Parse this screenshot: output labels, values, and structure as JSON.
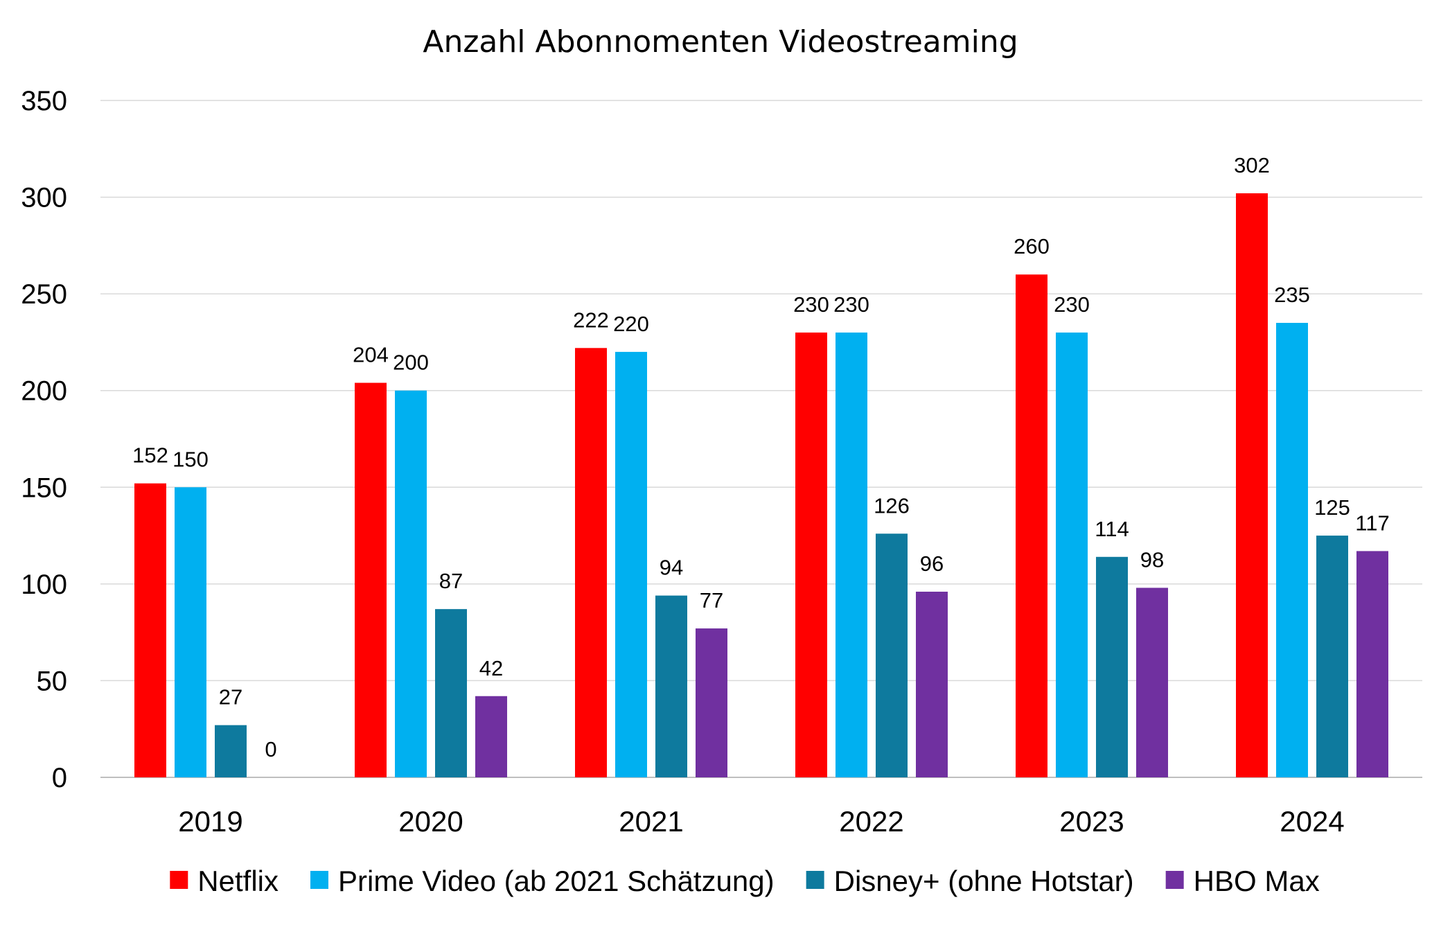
{
  "chart_data": {
    "type": "bar",
    "title": "Anzahl Abonnomenten Videostreaming",
    "xlabel": "",
    "ylabel": "",
    "ylim": [
      0,
      350
    ],
    "yticks": [
      0,
      50,
      100,
      150,
      200,
      250,
      300,
      350
    ],
    "grid": true,
    "legend_position": "bottom",
    "categories": [
      "2019",
      "2020",
      "2021",
      "2022",
      "2023",
      "2024"
    ],
    "series": [
      {
        "name": "Netflix",
        "color": "#ff0000",
        "values": [
          152,
          204,
          222,
          230,
          260,
          302
        ]
      },
      {
        "name": "Prime Video (ab 2021 Schätzung)",
        "color": "#00b0f0",
        "values": [
          150,
          200,
          220,
          230,
          230,
          235
        ]
      },
      {
        "name": "Disney+ (ohne Hotstar)",
        "color": "#0e7a9e",
        "values": [
          27,
          87,
          94,
          126,
          114,
          125
        ]
      },
      {
        "name": "HBO Max",
        "color": "#7030a0",
        "values": [
          0,
          42,
          77,
          96,
          98,
          117
        ]
      }
    ]
  }
}
